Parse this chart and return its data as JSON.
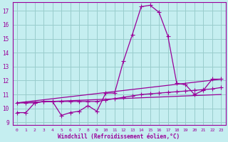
{
  "xlabel": "Windchill (Refroidissement éolien,°C)",
  "xlim": [
    -0.5,
    23.5
  ],
  "ylim": [
    8.8,
    17.6
  ],
  "yticks": [
    9,
    10,
    11,
    12,
    13,
    14,
    15,
    16,
    17
  ],
  "xticks": [
    0,
    1,
    2,
    3,
    4,
    5,
    6,
    7,
    8,
    9,
    10,
    11,
    12,
    13,
    14,
    15,
    16,
    17,
    18,
    19,
    20,
    21,
    22,
    23
  ],
  "bg_color": "#c5eef0",
  "line_color": "#990099",
  "grid_color": "#99cccc",
  "curve1_x": [
    0,
    1,
    2,
    3,
    4,
    5,
    6,
    7,
    8,
    9,
    10,
    11,
    12,
    13,
    14,
    15,
    16,
    17,
    18,
    19,
    20,
    21,
    22,
    23
  ],
  "curve1_y": [
    9.7,
    9.7,
    10.4,
    10.5,
    10.5,
    9.5,
    9.7,
    9.8,
    10.2,
    9.8,
    11.1,
    11.1,
    13.4,
    15.3,
    17.3,
    17.4,
    16.9,
    15.2,
    11.8,
    11.7,
    11.0,
    11.3,
    12.1,
    12.1
  ],
  "curve2_x": [
    0,
    1,
    2,
    3,
    4,
    5,
    6,
    7,
    8,
    9,
    10,
    11,
    12,
    13,
    14,
    15,
    16,
    17,
    18,
    19,
    20,
    21,
    22,
    23
  ],
  "curve2_y": [
    10.4,
    10.4,
    10.4,
    10.5,
    10.5,
    10.5,
    10.5,
    10.5,
    10.5,
    10.5,
    10.6,
    10.7,
    10.8,
    10.9,
    11.0,
    11.05,
    11.1,
    11.15,
    11.2,
    11.25,
    11.3,
    11.35,
    11.4,
    11.5
  ],
  "curve3_x": [
    0,
    23
  ],
  "curve3_y": [
    10.4,
    12.1
  ],
  "curve4_x": [
    0,
    23
  ],
  "curve4_y": [
    10.4,
    11.0
  ]
}
